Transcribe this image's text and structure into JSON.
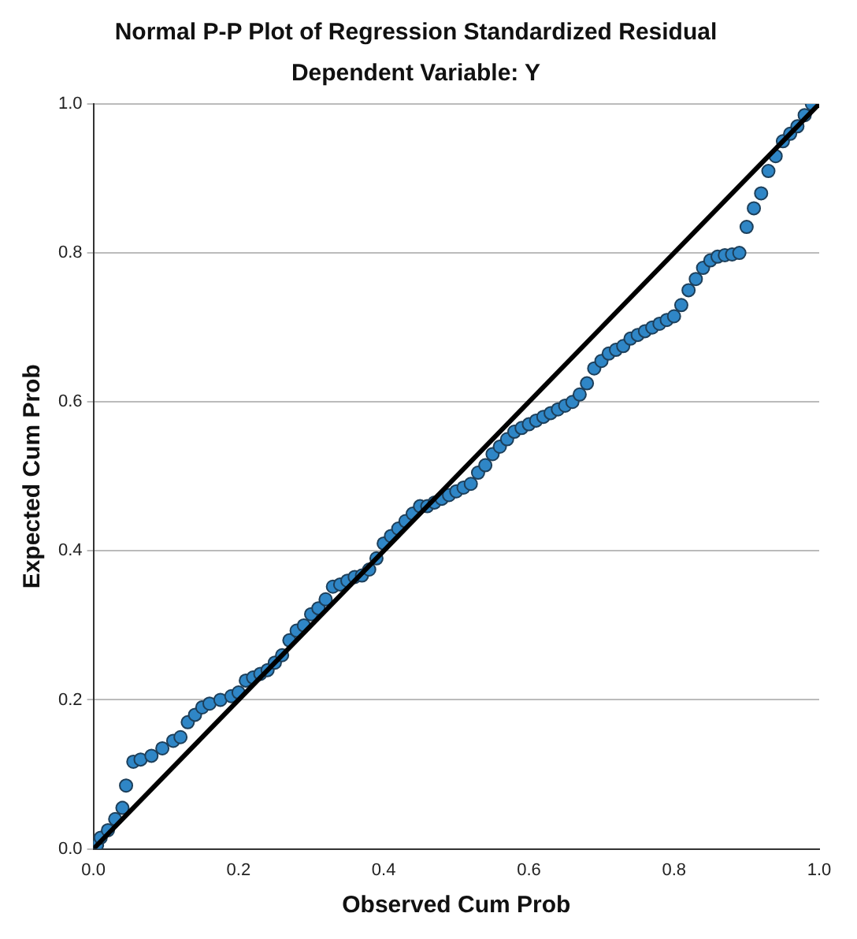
{
  "chart_data": {
    "type": "scatter",
    "title": "Normal P-P Plot of Regression Standardized Residual",
    "subtitle": "Dependent Variable: Y",
    "xlabel": "Observed Cum Prob",
    "ylabel": "Expected Cum Prob",
    "xlim": [
      0,
      1
    ],
    "ylim": [
      0,
      1
    ],
    "xticks": [
      {
        "value": 0,
        "label": "0.0"
      },
      {
        "value": 0.2,
        "label": "0.2"
      },
      {
        "value": 0.4,
        "label": "0.4"
      },
      {
        "value": 0.6,
        "label": "0.6"
      },
      {
        "value": 0.8,
        "label": "0.8"
      },
      {
        "value": 1,
        "label": "1.0"
      }
    ],
    "yticks": [
      {
        "value": 0,
        "label": "0.0"
      },
      {
        "value": 0.2,
        "label": "0.2"
      },
      {
        "value": 0.4,
        "label": "0.4"
      },
      {
        "value": 0.6,
        "label": "0.6"
      },
      {
        "value": 0.8,
        "label": "0.8"
      },
      {
        "value": 1,
        "label": "1.0"
      }
    ],
    "grid": "y",
    "series": [
      {
        "type": "scatter",
        "marker": "circle",
        "color": "#2f86c6",
        "x": [
          0.005,
          0.01,
          0.02,
          0.03,
          0.04,
          0.045,
          0.055,
          0.065,
          0.08,
          0.095,
          0.11,
          0.12,
          0.13,
          0.14,
          0.15,
          0.16,
          0.175,
          0.19,
          0.2,
          0.21,
          0.22,
          0.23,
          0.24,
          0.25,
          0.26,
          0.27,
          0.28,
          0.29,
          0.3,
          0.31,
          0.32,
          0.33,
          0.34,
          0.35,
          0.36,
          0.37,
          0.38,
          0.39,
          0.4,
          0.41,
          0.42,
          0.43,
          0.44,
          0.45,
          0.46,
          0.47,
          0.48,
          0.49,
          0.5,
          0.51,
          0.52,
          0.53,
          0.54,
          0.55,
          0.56,
          0.57,
          0.58,
          0.59,
          0.6,
          0.61,
          0.62,
          0.63,
          0.64,
          0.65,
          0.66,
          0.67,
          0.68,
          0.69,
          0.7,
          0.71,
          0.72,
          0.73,
          0.74,
          0.75,
          0.76,
          0.77,
          0.78,
          0.79,
          0.8,
          0.81,
          0.82,
          0.83,
          0.84,
          0.85,
          0.86,
          0.87,
          0.88,
          0.89,
          0.9,
          0.91,
          0.92,
          0.93,
          0.94,
          0.95,
          0.96,
          0.97,
          0.98,
          0.99
        ],
        "values": [
          0.005,
          0.015,
          0.025,
          0.04,
          0.055,
          0.085,
          0.117,
          0.12,
          0.125,
          0.135,
          0.145,
          0.15,
          0.17,
          0.18,
          0.19,
          0.195,
          0.2,
          0.205,
          0.21,
          0.226,
          0.23,
          0.235,
          0.24,
          0.25,
          0.26,
          0.28,
          0.293,
          0.3,
          0.315,
          0.323,
          0.335,
          0.352,
          0.355,
          0.36,
          0.365,
          0.367,
          0.375,
          0.39,
          0.41,
          0.42,
          0.43,
          0.44,
          0.45,
          0.46,
          0.46,
          0.465,
          0.47,
          0.475,
          0.48,
          0.485,
          0.49,
          0.505,
          0.515,
          0.53,
          0.54,
          0.55,
          0.56,
          0.565,
          0.57,
          0.575,
          0.58,
          0.585,
          0.59,
          0.595,
          0.6,
          0.61,
          0.625,
          0.645,
          0.655,
          0.665,
          0.67,
          0.675,
          0.685,
          0.69,
          0.695,
          0.7,
          0.705,
          0.71,
          0.715,
          0.73,
          0.75,
          0.765,
          0.78,
          0.79,
          0.795,
          0.797,
          0.798,
          0.8,
          0.835,
          0.86,
          0.88,
          0.91,
          0.93,
          0.95,
          0.96,
          0.97,
          0.985,
          1.0
        ]
      },
      {
        "type": "line",
        "marker": "none",
        "color": "#000000",
        "x": [
          0,
          1
        ],
        "values": [
          0,
          1
        ]
      }
    ]
  }
}
